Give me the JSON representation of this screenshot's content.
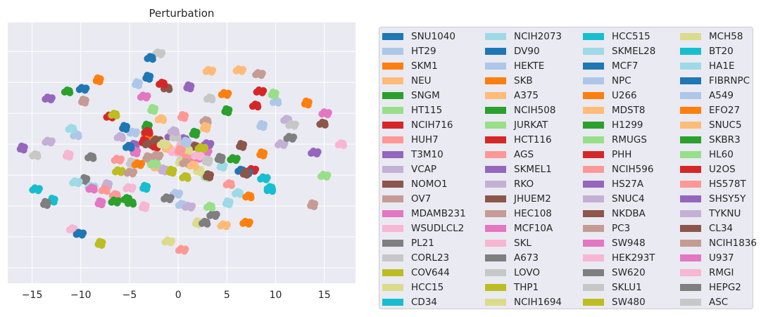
{
  "chart_data": {
    "type": "scatter",
    "title": "Perturbation",
    "xlabel": "",
    "ylabel": "",
    "xlim": [
      -17.5,
      18.2
    ],
    "ylim": [
      -20,
      20.5
    ],
    "xticks": [
      -15,
      -10,
      -5,
      0,
      5,
      10,
      15
    ],
    "xtick_labels": [
      "−15",
      "−10",
      "−5",
      "0",
      "5",
      "10",
      "15"
    ],
    "yticks": [
      -17.6,
      -12.8,
      -8.0,
      -3.2,
      1.6,
      6.4,
      11.2,
      16.0
    ],
    "grid": true,
    "legend_placement": "outside-right",
    "legend_columns": 4,
    "palette": [
      "#1f77b4",
      "#aec7e8",
      "#ff7f0e",
      "#ffbb78",
      "#2ca02c",
      "#98df8a",
      "#d62728",
      "#ff9896",
      "#9467bd",
      "#c5b0d5",
      "#8c564b",
      "#c49c94",
      "#e377c2",
      "#f7b6d2",
      "#7f7f7f",
      "#c7c7c7",
      "#bcbd22",
      "#dbdb8d",
      "#17becf",
      "#9edae5"
    ],
    "series": [
      {
        "name": "SNU1040",
        "points": [
          [
            -9.8,
            10.2
          ],
          [
            6.3,
            -2.5
          ]
        ]
      },
      {
        "name": "HT29",
        "points": [
          [
            -10.6,
            3.0
          ],
          [
            8.6,
            4.5
          ]
        ]
      },
      {
        "name": "SKM1",
        "points": [
          [
            -8.2,
            11.6
          ],
          [
            7.0,
            -10.6
          ]
        ]
      },
      {
        "name": "NEU",
        "points": [
          [
            3.2,
            13.0
          ],
          [
            -1.9,
            5.5
          ]
        ]
      },
      {
        "name": "SNGM",
        "points": [
          [
            -11.5,
            9.8
          ],
          [
            5.0,
            6.8
          ]
        ]
      },
      {
        "name": "HT115",
        "points": [
          [
            -2.6,
            7.0
          ],
          [
            15.0,
            -3.3
          ]
        ]
      },
      {
        "name": "NCIH716",
        "points": [
          [
            -7.0,
            5.9
          ],
          [
            7.8,
            7.6
          ]
        ]
      },
      {
        "name": "HUH7",
        "points": [
          [
            -6.6,
            -6.3
          ],
          [
            0.5,
            5.9
          ]
        ]
      },
      {
        "name": "T3M10",
        "points": [
          [
            -16.0,
            1.0
          ],
          [
            14.0,
            0.3
          ]
        ]
      },
      {
        "name": "VCAP",
        "points": [
          [
            -13.3,
            2.0
          ],
          [
            11.0,
            5.4
          ]
        ]
      },
      {
        "name": "NOMO1",
        "points": [
          [
            -1.3,
            10.3
          ],
          [
            6.5,
            1.4
          ]
        ]
      },
      {
        "name": "OV7",
        "points": [
          [
            -9.7,
            8.3
          ],
          [
            8.3,
            12.5
          ]
        ]
      },
      {
        "name": "MDAMB231",
        "points": [
          [
            -3.5,
            9.0
          ],
          [
            1.5,
            1.3
          ]
        ]
      },
      {
        "name": "WSUDLCL2",
        "points": [
          [
            -11.0,
            -11.6
          ],
          [
            -3.5,
            -8.1
          ]
        ]
      },
      {
        "name": "PL21",
        "points": [
          [
            -9.6,
            -3.9
          ],
          [
            3.6,
            -9.4
          ]
        ]
      },
      {
        "name": "CORL23",
        "points": [
          [
            -2.0,
            15.7
          ],
          [
            3.1,
            8.7
          ]
        ]
      },
      {
        "name": "COV644",
        "points": [
          [
            -6.7,
            6.2
          ],
          [
            -8.0,
            -13.8
          ]
        ]
      },
      {
        "name": "HCC15",
        "points": [
          [
            2.0,
            -10.6
          ],
          [
            -1.0,
            -13.5
          ]
        ]
      },
      {
        "name": "CD34",
        "points": [
          [
            -14.6,
            -5.4
          ],
          [
            9.3,
            -5.5
          ]
        ]
      },
      {
        "name": "NCIH2073",
        "points": [
          [
            -11.1,
            4.0
          ],
          [
            4.5,
            -1.8
          ]
        ]
      },
      {
        "name": "DV90",
        "points": [
          [
            -3.1,
            12.0
          ],
          [
            -10.1,
            -12.3
          ]
        ]
      },
      {
        "name": "HEKTE",
        "points": [
          [
            -4.6,
            3.4
          ],
          [
            0.2,
            -7.8
          ]
        ]
      },
      {
        "name": "SKB",
        "points": [
          [
            -3.3,
            3.1
          ],
          [
            8.6,
            0.1
          ]
        ]
      },
      {
        "name": "A375",
        "points": [
          [
            -1.1,
            1.0
          ],
          [
            4.7,
            -11.0
          ]
        ]
      },
      {
        "name": "NCIH508",
        "points": [
          [
            5.7,
            -0.7
          ],
          [
            -5.4,
            -6.9
          ]
        ]
      },
      {
        "name": "JURKAT",
        "points": [
          [
            -2.8,
            -1.0
          ],
          [
            2.9,
            -3.4
          ]
        ]
      },
      {
        "name": "HCT116",
        "points": [
          [
            -3.5,
            2.0
          ],
          [
            7.6,
            -2.4
          ]
        ]
      },
      {
        "name": "AGS",
        "points": [
          [
            -6.2,
            -0.8
          ],
          [
            5.1,
            -4.6
          ]
        ]
      },
      {
        "name": "SKMEL1",
        "points": [
          [
            -4.7,
            1.5
          ],
          [
            0.6,
            2.3
          ]
        ]
      },
      {
        "name": "RKO",
        "points": [
          [
            -7.3,
            -4.7
          ],
          [
            1.1,
            -8.1
          ]
        ]
      },
      {
        "name": "JHUEM2",
        "points": [
          [
            -3.0,
            1.6
          ],
          [
            1.6,
            1.2
          ]
        ]
      },
      {
        "name": "HEC108",
        "points": [
          [
            2.7,
            5.2
          ],
          [
            -3.1,
            -0.5
          ]
        ]
      },
      {
        "name": "MCF10A",
        "points": [
          [
            -4.4,
            0.4
          ],
          [
            2.8,
            0.4
          ]
        ]
      },
      {
        "name": "SKL",
        "points": [
          [
            -5.0,
            -5.2
          ],
          [
            -0.5,
            0.4
          ]
        ]
      },
      {
        "name": "A673",
        "points": [
          [
            -9.1,
            -0.4
          ],
          [
            4.3,
            -0.6
          ]
        ]
      },
      {
        "name": "LOVO",
        "points": [
          [
            -4.8,
            -1.3
          ],
          [
            0.5,
            -0.8
          ]
        ]
      },
      {
        "name": "THP1",
        "points": [
          [
            -6.1,
            -2.6
          ],
          [
            0.6,
            -3.5
          ]
        ]
      },
      {
        "name": "NCIH1694",
        "points": [
          [
            0.2,
            -1.2
          ],
          [
            2.1,
            -2.5
          ]
        ]
      },
      {
        "name": "HCC515",
        "points": [
          [
            -3.4,
            -5.1
          ],
          [
            8.8,
            -3.7
          ]
        ]
      },
      {
        "name": "SKMEL28",
        "points": [
          [
            -10.5,
            -4.3
          ],
          [
            6.0,
            -6.0
          ]
        ]
      },
      {
        "name": "MCF7",
        "points": [
          [
            -3.0,
            15.0
          ],
          [
            -5.5,
            4.2
          ]
        ]
      },
      {
        "name": "NPC",
        "points": [
          [
            -4.2,
            11.0
          ],
          [
            -0.2,
            -6.1
          ]
        ]
      },
      {
        "name": "U266",
        "points": [
          [
            -4.1,
            -1.5
          ],
          [
            7.1,
            -6.5
          ]
        ]
      },
      {
        "name": "MDST8",
        "points": [
          [
            -2.3,
            -2.0
          ],
          [
            2.8,
            4.2
          ]
        ]
      },
      {
        "name": "H1299",
        "points": [
          [
            -3.2,
            4.4
          ],
          [
            -6.5,
            -7.3
          ]
        ]
      },
      {
        "name": "RMUGS",
        "points": [
          [
            1.2,
            -1.0
          ],
          [
            3.1,
            -8.1
          ]
        ]
      },
      {
        "name": "PHH",
        "points": [
          [
            -3.3,
            3.5
          ],
          [
            -2.3,
            1.3
          ]
        ]
      },
      {
        "name": "NCIH596",
        "points": [
          [
            1.0,
            -0.3
          ],
          [
            0.4,
            -14.8
          ]
        ]
      },
      {
        "name": "HS27A",
        "points": [
          [
            3.0,
            1.6
          ],
          [
            -0.9,
            2.8
          ]
        ]
      },
      {
        "name": "SNUC4",
        "points": [
          [
            -6.1,
            2.7
          ],
          [
            -1.5,
            -2.4
          ]
        ]
      },
      {
        "name": "NKDBA",
        "points": [
          [
            3.1,
            -3.3
          ],
          [
            -2.2,
            2.2
          ]
        ]
      },
      {
        "name": "PC3",
        "points": [
          [
            -4.9,
            -2.8
          ],
          [
            0.6,
            -1.3
          ]
        ]
      },
      {
        "name": "SW948",
        "points": [
          [
            1.8,
            -0.5
          ],
          [
            -8.0,
            -7.5
          ]
        ]
      },
      {
        "name": "HEK293T",
        "points": [
          [
            0.3,
            1.4
          ],
          [
            2.0,
            -0.2
          ]
        ]
      },
      {
        "name": "SW620",
        "points": [
          [
            -1.1,
            -6.8
          ],
          [
            2.6,
            -10.6
          ]
        ]
      },
      {
        "name": "SKLU1",
        "points": [
          [
            -0.4,
            2.7
          ],
          [
            3.0,
            -1.0
          ]
        ]
      },
      {
        "name": "SW480",
        "points": [
          [
            -0.7,
            -2.6
          ],
          [
            2.4,
            1.0
          ]
        ]
      },
      {
        "name": "MCH58",
        "points": [
          [
            -1.5,
            1.6
          ],
          [
            0.8,
            0.7
          ]
        ]
      },
      {
        "name": "BT20",
        "points": [
          [
            9.3,
            -5.2
          ],
          [
            -12.9,
            -7.1
          ]
        ]
      },
      {
        "name": "HA1E",
        "points": [
          [
            5.1,
            -7.5
          ],
          [
            -8.9,
            -5.0
          ]
        ]
      },
      {
        "name": "FIBRNPC",
        "points": [
          [
            7.0,
            -2.8
          ],
          [
            -5.2,
            1.2
          ]
        ]
      },
      {
        "name": "A549",
        "points": [
          [
            9.9,
            8.2
          ],
          [
            0.8,
            1.9
          ]
        ]
      },
      {
        "name": "EFO27",
        "points": [
          [
            13.2,
            8.0
          ],
          [
            4.8,
            9.4
          ]
        ]
      },
      {
        "name": "SNUC5",
        "points": [
          [
            6.3,
            13.1
          ],
          [
            1.4,
            -1.7
          ]
        ]
      },
      {
        "name": "SKBR3",
        "points": [
          [
            -5.0,
            -7.5
          ],
          [
            1.7,
            3.3
          ]
        ]
      },
      {
        "name": "HL60",
        "points": [
          [
            9.8,
            9.4
          ],
          [
            -2.5,
            -1.5
          ]
        ]
      },
      {
        "name": "U2OS",
        "points": [
          [
            8.4,
            9.8
          ],
          [
            -1.8,
            11.0
          ]
        ]
      },
      {
        "name": "HS578T",
        "points": [
          [
            -7.7,
            -5.5
          ],
          [
            0.2,
            0.6
          ]
        ]
      },
      {
        "name": "SHSY5Y",
        "points": [
          [
            1.1,
            10.5
          ],
          [
            -13.3,
            8.7
          ]
        ]
      },
      {
        "name": "TYKNU",
        "points": [
          [
            10.6,
            1.6
          ],
          [
            -0.6,
            3.6
          ]
        ]
      },
      {
        "name": "CL34",
        "points": [
          [
            14.7,
            4.8
          ],
          [
            6.9,
            -2.9
          ]
        ]
      },
      {
        "name": "NCIH1836",
        "points": [
          [
            13.8,
            -7.8
          ],
          [
            -2.2,
            -0.2
          ]
        ]
      },
      {
        "name": "U937",
        "points": [
          [
            15.1,
            6.4
          ],
          [
            -9.0,
            -5.3
          ]
        ]
      },
      {
        "name": "RMGI",
        "points": [
          [
            16.6,
            1.6
          ],
          [
            -11.3,
            -0.1
          ]
        ]
      },
      {
        "name": "HEPG2",
        "points": [
          [
            -13.6,
            -7.6
          ],
          [
            11.5,
            2.6
          ]
        ]
      },
      {
        "name": "ASC",
        "points": [
          [
            11.7,
            4.6
          ],
          [
            -14.8,
            -0.1
          ]
        ]
      }
    ]
  }
}
